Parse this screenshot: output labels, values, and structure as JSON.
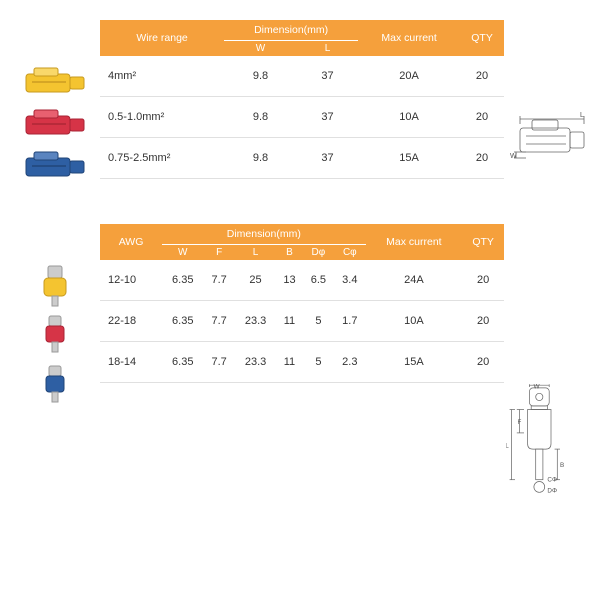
{
  "colors": {
    "header_bg": "#f5a03c",
    "header_text": "#ffffff",
    "row_border": "#e0e0e0",
    "text": "#333333",
    "yellow": "#f4c430",
    "red": "#d63447",
    "blue": "#2e5fa3",
    "diagram_stroke": "#666666"
  },
  "table1": {
    "headers": {
      "col1": "Wire range",
      "dim_group": "Dimension(mm)",
      "dim_w": "W",
      "dim_l": "L",
      "col_max": "Max current",
      "col_qty": "QTY"
    },
    "rows": [
      {
        "range": "4mm²",
        "w": "9.8",
        "l": "37",
        "max": "20A",
        "qty": "20",
        "color": "#f4c430"
      },
      {
        "range": "0.5-1.0mm²",
        "w": "9.8",
        "l": "37",
        "max": "10A",
        "qty": "20",
        "color": "#d63447"
      },
      {
        "range": "0.75-2.5mm²",
        "w": "9.8",
        "l": "37",
        "max": "15A",
        "qty": "20",
        "color": "#2e5fa3"
      }
    ]
  },
  "table2": {
    "headers": {
      "col1": "AWG",
      "dim_group": "Dimension(mm)",
      "w": "W",
      "f": "F",
      "l": "L",
      "b": "B",
      "dphi": "Dφ",
      "cphi": "Cφ",
      "col_max": "Max current",
      "col_qty": "QTY"
    },
    "rows": [
      {
        "awg": "12-10",
        "w": "6.35",
        "f": "7.7",
        "l": "25",
        "b": "13",
        "dphi": "6.5",
        "cphi": "3.4",
        "max": "24A",
        "qty": "20",
        "color": "#f4c430"
      },
      {
        "awg": "22-18",
        "w": "6.35",
        "f": "7.7",
        "l": "23.3",
        "b": "11",
        "dphi": "5",
        "cphi": "1.7",
        "max": "10A",
        "qty": "20",
        "color": "#d63447"
      },
      {
        "awg": "18-14",
        "w": "6.35",
        "f": "7.7",
        "l": "23.3",
        "b": "11",
        "dphi": "5",
        "cphi": "2.3",
        "max": "15A",
        "qty": "20",
        "color": "#2e5fa3"
      }
    ]
  },
  "diagram1_labels": {
    "w": "W",
    "l": "L"
  },
  "diagram2_labels": {
    "w": "W",
    "f": "F",
    "l": "L",
    "b": "B",
    "cphi": "CΦ",
    "dphi": "DΦ"
  }
}
